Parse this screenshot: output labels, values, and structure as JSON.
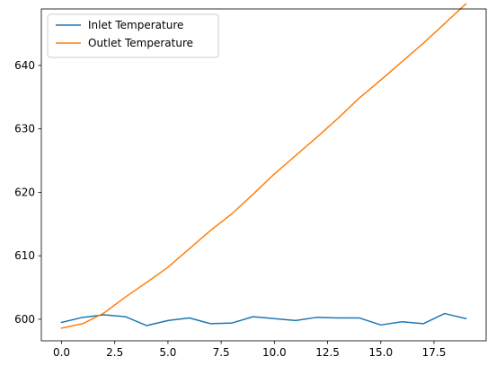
{
  "chart_data": {
    "type": "line",
    "title": "",
    "xlabel": "",
    "ylabel": "",
    "xlim": [
      -0.95,
      19.95
    ],
    "ylim": [
      596.6,
      648.9
    ],
    "xticks": [
      0.0,
      2.5,
      5.0,
      7.5,
      10.0,
      12.5,
      15.0,
      17.5
    ],
    "xtick_labels": [
      "0.0",
      "2.5",
      "5.0",
      "7.5",
      "10.0",
      "12.5",
      "15.0",
      "17.5"
    ],
    "yticks": [
      600,
      610,
      620,
      630,
      640
    ],
    "ytick_labels": [
      "600",
      "610",
      "620",
      "630",
      "640"
    ],
    "grid": false,
    "legend_position": "top-left",
    "x": [
      0,
      1,
      2,
      3,
      4,
      5,
      6,
      7,
      8,
      9,
      10,
      11,
      12,
      13,
      14,
      15,
      16,
      17,
      18,
      19
    ],
    "series": [
      {
        "name": "Inlet Temperature",
        "color": "#1f77b4",
        "values": [
          599.5,
          600.3,
          600.7,
          600.4,
          599.0,
          599.8,
          600.2,
          599.3,
          599.4,
          600.4,
          600.1,
          599.8,
          600.3,
          600.2,
          600.2,
          599.1,
          599.6,
          599.3,
          600.9,
          600.1
        ]
      },
      {
        "name": "Outlet Temperature",
        "color": "#ff7f0e",
        "values": [
          598.6,
          599.3,
          601.0,
          603.5,
          605.8,
          608.2,
          611.1,
          614.0,
          616.6,
          619.7,
          622.9,
          625.8,
          628.7,
          631.7,
          634.9,
          637.7,
          640.6,
          643.5,
          646.6,
          649.7
        ]
      }
    ]
  }
}
